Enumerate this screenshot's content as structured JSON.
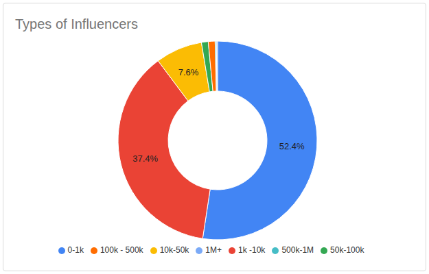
{
  "chart_data": {
    "type": "pie",
    "title": "Types of Influencers",
    "categories": [
      "0-1k",
      "1k -10k",
      "10k-50k",
      "50k-100k",
      "100k - 500k",
      "500k-1M",
      "1M+"
    ],
    "values": [
      52.4,
      37.4,
      7.6,
      1.1,
      1.1,
      0.2,
      0.2
    ],
    "value_labels": [
      "52.4%",
      "37.4%",
      "7.6%",
      null,
      null,
      null,
      null
    ],
    "colors": [
      "#4285f4",
      "#ea4335",
      "#fbbc04",
      "#34a853",
      "#ff6d01",
      "#46bdc6",
      "#7baaf7"
    ],
    "data_labels": true,
    "legend": "bottom"
  }
}
